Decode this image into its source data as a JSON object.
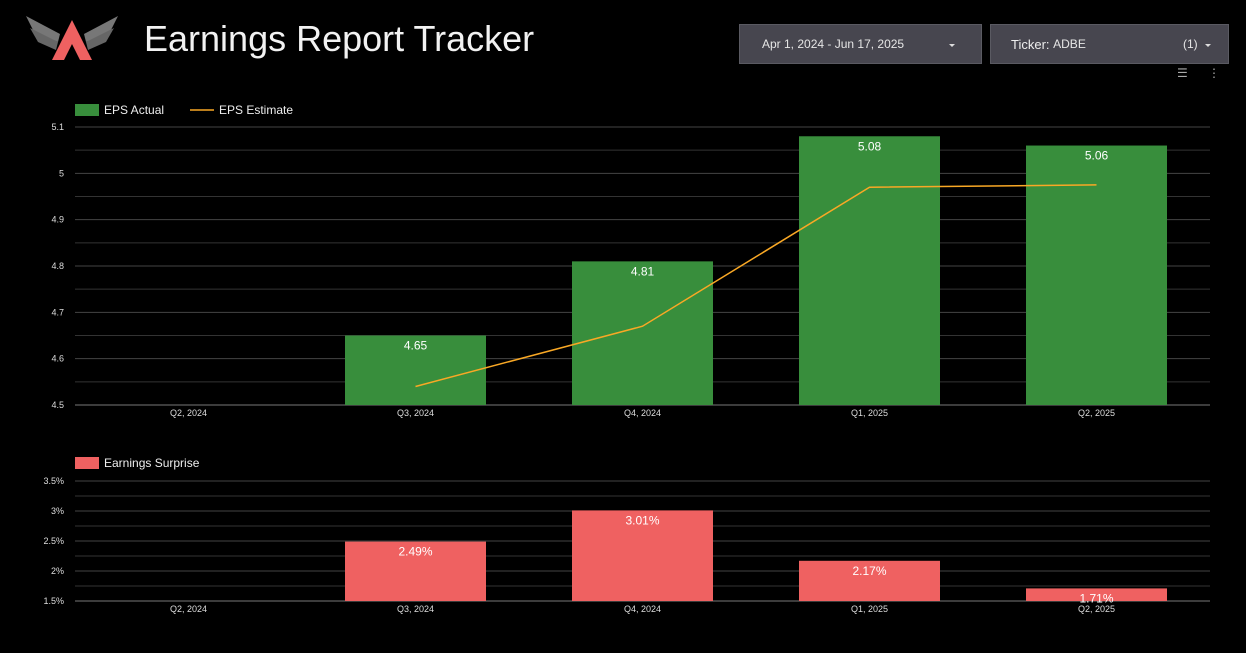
{
  "header": {
    "title": "Earnings Report Tracker",
    "logo_text": "A"
  },
  "controls": {
    "date_range": "Apr 1, 2024 - Jun 17, 2025",
    "ticker_label": "Ticker",
    "ticker_value": "ADBE",
    "ticker_count": "(1)"
  },
  "colors": {
    "actual": "#388e3c",
    "estimate": "#f9a825",
    "surprise": "#ef6161",
    "grid": "#444444"
  },
  "chart_data": [
    {
      "type": "bar",
      "categories": [
        "Q2, 2024",
        "Q3, 2024",
        "Q4, 2024",
        "Q1, 2025",
        "Q2, 2025"
      ],
      "series": [
        {
          "name": "EPS Actual",
          "type": "bar",
          "values": [
            null,
            4.65,
            4.81,
            5.08,
            5.06
          ],
          "labels": [
            "",
            "4.65",
            "4.81",
            "5.08",
            "5.06"
          ]
        },
        {
          "name": "EPS Estimate",
          "type": "line",
          "values": [
            null,
            4.54,
            4.67,
            4.97,
            4.975
          ]
        }
      ],
      "yticks": [
        "4.5",
        "4.6",
        "4.7",
        "4.8",
        "4.9",
        "5",
        "5.1"
      ],
      "ylim": [
        4.5,
        5.1
      ],
      "grid": true,
      "legend": "top-left"
    },
    {
      "type": "bar",
      "categories": [
        "Q2, 2024",
        "Q3, 2024",
        "Q4, 2024",
        "Q1, 2025",
        "Q2, 2025"
      ],
      "series": [
        {
          "name": "Earnings Surprise",
          "values": [
            null,
            2.49,
            3.01,
            2.17,
            1.71
          ],
          "labels": [
            "",
            "2.49%",
            "3.01%",
            "2.17%",
            "1.71%"
          ]
        }
      ],
      "yticks": [
        "1.5%",
        "2%",
        "2.5%",
        "3%",
        "3.5%"
      ],
      "ylim": [
        1.5,
        3.5
      ],
      "grid": true,
      "legend": "top-left"
    }
  ]
}
